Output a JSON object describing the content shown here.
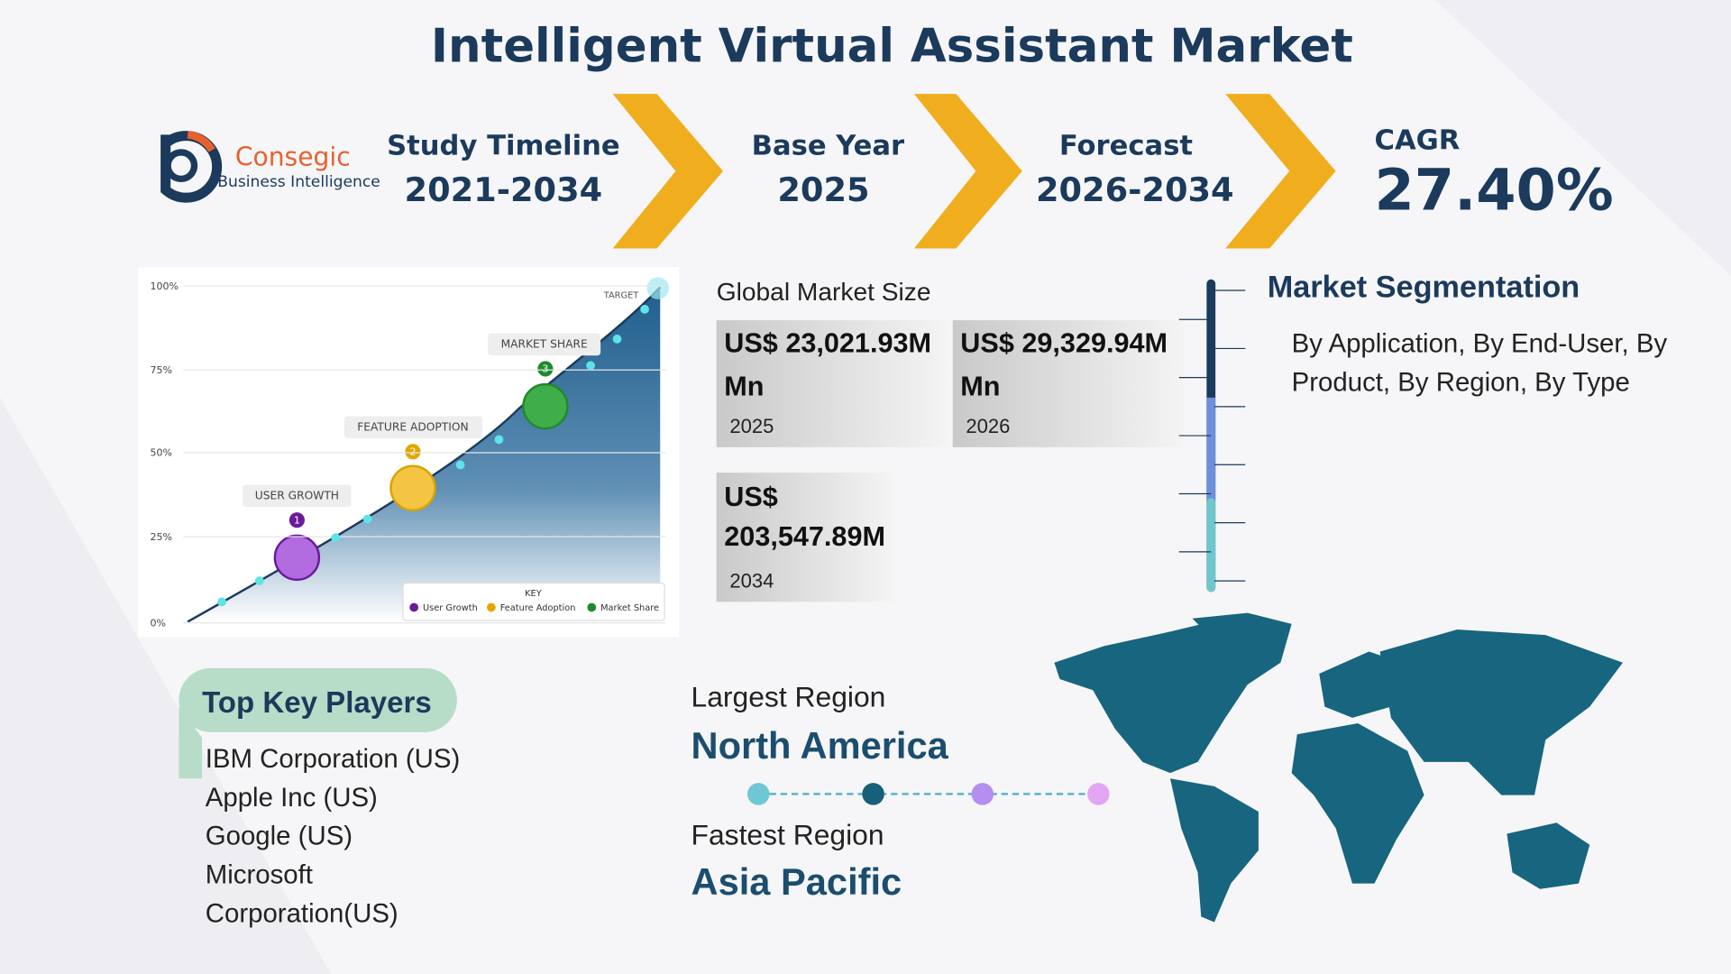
{
  "header": {
    "title": "Intelligent Virtual Assistant Market"
  },
  "logo": {
    "name": "Consegic",
    "tagline": "Business Intelligence"
  },
  "timeline": [
    {
      "label": "Study Timeline",
      "value": "2021-2034"
    },
    {
      "label": "Base Year",
      "value": "2025"
    },
    {
      "label": "Forecast",
      "value": "2026-2034"
    }
  ],
  "cagr": {
    "label": "CAGR",
    "value": "27.40%"
  },
  "illustration": {
    "yticks": [
      "100%",
      "75%",
      "50%",
      "25%",
      "0%"
    ],
    "target": "TARGET",
    "milestones": [
      {
        "number": "1",
        "label": "USER GROWTH"
      },
      {
        "number": "2",
        "label": "FEATURE ADOPTION"
      },
      {
        "number": "3",
        "label": "MARKET SHARE"
      }
    ],
    "key": {
      "title": "KEY",
      "items": [
        "User Growth",
        "Feature Adoption",
        "Market Share"
      ]
    }
  },
  "market_size": {
    "title": "Global Market Size",
    "cards": [
      {
        "value": "US$ 23,021.93M Mn",
        "year": "2025"
      },
      {
        "value": "US$ 29,329.94M Mn",
        "year": "2026"
      },
      {
        "value": "US$ 203,547.89M Mn",
        "year": "2034"
      }
    ]
  },
  "segmentation": {
    "title": "Market Segmentation",
    "text": "By Application, By End-User, By Product, By Region, By Type"
  },
  "key_players": {
    "title": "Top Key Players",
    "items": [
      "IBM Corporation (US)",
      "Apple Inc (US)",
      "Google (US)",
      "Microsoft Corporation(US)"
    ]
  },
  "regions": {
    "largest_label": "Largest Region",
    "largest": "North America",
    "fastest_label": "Fastest Region",
    "fastest": "Asia Pacific"
  }
}
